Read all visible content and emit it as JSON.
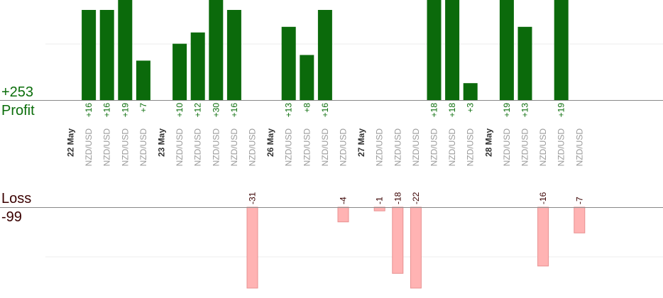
{
  "labels": {
    "profit_total": "+253",
    "profit_title": "Profit",
    "loss_title": "Loss",
    "loss_total": "-99"
  },
  "colors": {
    "profit_bar": "#0b6a0b",
    "loss_bar": "#ffb3b3",
    "profit_text": "#0a6d0a",
    "loss_text": "#3a0000",
    "pair_text": "#9a9a9a",
    "date_text": "#333333"
  },
  "chart_data": {
    "type": "bar",
    "profit_series": [
      {
        "pair": "NZD/USD",
        "value": 16,
        "label": "+16"
      },
      {
        "pair": "NZD/USD",
        "value": 16,
        "label": "+16"
      },
      {
        "pair": "NZD/USD",
        "value": 19,
        "label": "+19"
      },
      {
        "pair": "NZD/USD",
        "value": 7,
        "label": "+7"
      },
      {
        "pair": "NZD/USD",
        "value": 10,
        "label": "+10"
      },
      {
        "pair": "NZD/USD",
        "value": 12,
        "label": "+12"
      },
      {
        "pair": "NZD/USD",
        "value": 30,
        "label": "+30"
      },
      {
        "pair": "NZD/USD",
        "value": 16,
        "label": "+16"
      },
      {
        "pair": "NZD/USD",
        "value": 13,
        "label": "+13"
      },
      {
        "pair": "NZD/USD",
        "value": 8,
        "label": "+8"
      },
      {
        "pair": "NZD/USD",
        "value": 16,
        "label": "+16"
      },
      {
        "pair": "NZD/USD",
        "value": 18,
        "label": "+18"
      },
      {
        "pair": "NZD/USD",
        "value": 18,
        "label": "+18"
      },
      {
        "pair": "NZD/USD",
        "value": 3,
        "label": "+3"
      },
      {
        "pair": "NZD/USD",
        "value": 19,
        "label": "+19"
      },
      {
        "pair": "NZD/USD",
        "value": 13,
        "label": "+13"
      },
      {
        "pair": "NZD/USD",
        "value": 19,
        "label": "+19"
      }
    ],
    "loss_series": [
      {
        "pair": "NZD/USD",
        "value": -31,
        "label": "-31"
      },
      {
        "pair": "NZD/USD",
        "value": -4,
        "label": "-4"
      },
      {
        "pair": "NZD/USD",
        "value": -1,
        "label": "-1"
      },
      {
        "pair": "NZD/USD",
        "value": -18,
        "label": "-18"
      },
      {
        "pair": "NZD/USD",
        "value": -22,
        "label": "-22"
      },
      {
        "pair": "NZD/USD",
        "value": -16,
        "label": "-16"
      },
      {
        "pair": "NZD/USD",
        "value": -7,
        "label": "-7"
      }
    ],
    "categories": [
      {
        "type": "date",
        "label": "22 May"
      },
      {
        "type": "trade",
        "label": "NZD/USD",
        "profit": 0
      },
      {
        "type": "trade",
        "label": "NZD/USD",
        "profit": 1
      },
      {
        "type": "trade",
        "label": "NZD/USD",
        "profit": 2
      },
      {
        "type": "trade",
        "label": "NZD/USD",
        "profit": 3
      },
      {
        "type": "date",
        "label": "23 May"
      },
      {
        "type": "trade",
        "label": "NZD/USD",
        "profit": 4
      },
      {
        "type": "trade",
        "label": "NZD/USD",
        "profit": 5
      },
      {
        "type": "trade",
        "label": "NZD/USD",
        "profit": 6
      },
      {
        "type": "trade",
        "label": "NZD/USD",
        "profit": 7
      },
      {
        "type": "trade",
        "label": "NZD/USD",
        "loss": 0
      },
      {
        "type": "date",
        "label": "26 May"
      },
      {
        "type": "trade",
        "label": "NZD/USD",
        "profit": 8
      },
      {
        "type": "trade",
        "label": "NZD/USD",
        "profit": 9
      },
      {
        "type": "trade",
        "label": "NZD/USD",
        "profit": 10
      },
      {
        "type": "trade",
        "label": "NZD/USD",
        "loss": 1
      },
      {
        "type": "date",
        "label": "27 May"
      },
      {
        "type": "trade",
        "label": "NZD/USD",
        "loss": 2
      },
      {
        "type": "trade",
        "label": "NZD/USD",
        "loss": 3
      },
      {
        "type": "trade",
        "label": "NZD/USD",
        "loss": 4
      },
      {
        "type": "trade",
        "label": "NZD/USD",
        "profit": 11
      },
      {
        "type": "trade",
        "label": "NZD/USD",
        "profit": 12
      },
      {
        "type": "trade",
        "label": "NZD/USD",
        "profit": 13
      },
      {
        "type": "date",
        "label": "28 May"
      },
      {
        "type": "trade",
        "label": "NZD/USD",
        "profit": 14
      },
      {
        "type": "trade",
        "label": "NZD/USD",
        "profit": 15
      },
      {
        "type": "trade",
        "label": "NZD/USD",
        "loss": 5
      },
      {
        "type": "trade",
        "label": "NZD/USD",
        "profit": 16
      },
      {
        "type": "trade",
        "label": "NZD/USD",
        "loss": 6
      }
    ],
    "profit_axis_max": 16,
    "loss_axis_min": -22,
    "grid": true
  }
}
